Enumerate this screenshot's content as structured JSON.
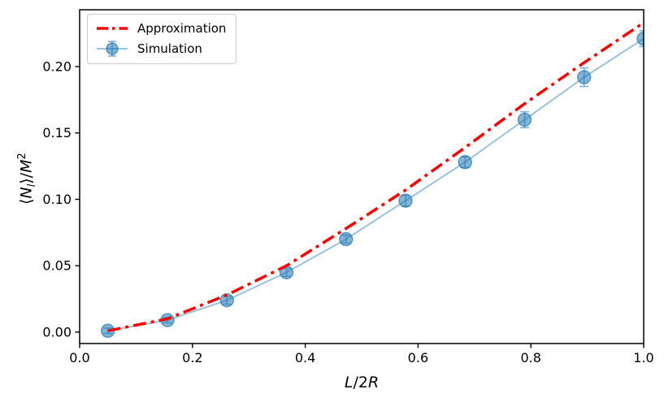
{
  "chart_data": {
    "type": "line",
    "title": "",
    "xlabel": "L/2R",
    "ylabel": "⟨N_l⟩/M^2",
    "xlabel_parts": {
      "l": "L",
      "mid": "/2",
      "r": "R"
    },
    "ylabel_parts": {
      "pre": "⟨",
      "n": "N",
      "sub": "l",
      "mid": "⟩/",
      "m": "M",
      "sup": "2"
    },
    "xlim": [
      0.0,
      1.0
    ],
    "ylim": [
      -0.0086,
      0.2428
    ],
    "x_ticks": [
      0.0,
      0.2,
      0.4,
      0.6,
      0.8,
      1.0
    ],
    "x_tick_labels": [
      "0.0",
      "0.2",
      "0.4",
      "0.6",
      "0.8",
      "1.0"
    ],
    "y_ticks": [
      0.0,
      0.05,
      0.1,
      0.15,
      0.2
    ],
    "y_tick_labels": [
      "0.00",
      "0.05",
      "0.10",
      "0.15",
      "0.20"
    ],
    "grid": false,
    "legend_position": "upper left",
    "x": [
      0.05,
      0.1556,
      0.2611,
      0.3667,
      0.4722,
      0.5778,
      0.6833,
      0.7889,
      0.8944,
      1.0
    ],
    "series": [
      {
        "name": "Approximation",
        "type": "line",
        "linestyle": "dashdot",
        "color": "#ff0000",
        "linewidth": 3.5,
        "y": [
          0.001,
          0.01,
          0.028,
          0.05,
          0.078,
          0.107,
          0.139,
          0.172,
          0.203,
          0.233
        ]
      },
      {
        "name": "Simulation",
        "type": "errorbar-line",
        "marker": "o",
        "color": "#1f77b4",
        "line_alpha": 0.45,
        "marker_alpha": 0.55,
        "y": [
          0.001,
          0.009,
          0.024,
          0.045,
          0.07,
          0.099,
          0.128,
          0.16,
          0.192,
          0.221
        ],
        "yerr": [
          0.002,
          0.002,
          0.003,
          0.003,
          0.003,
          0.004,
          0.004,
          0.006,
          0.007,
          0.006
        ]
      }
    ]
  },
  "colors": {
    "spine": "#000000",
    "tick_label": "#000000",
    "legend_border": "#cccccc",
    "background": "#ffffff"
  }
}
